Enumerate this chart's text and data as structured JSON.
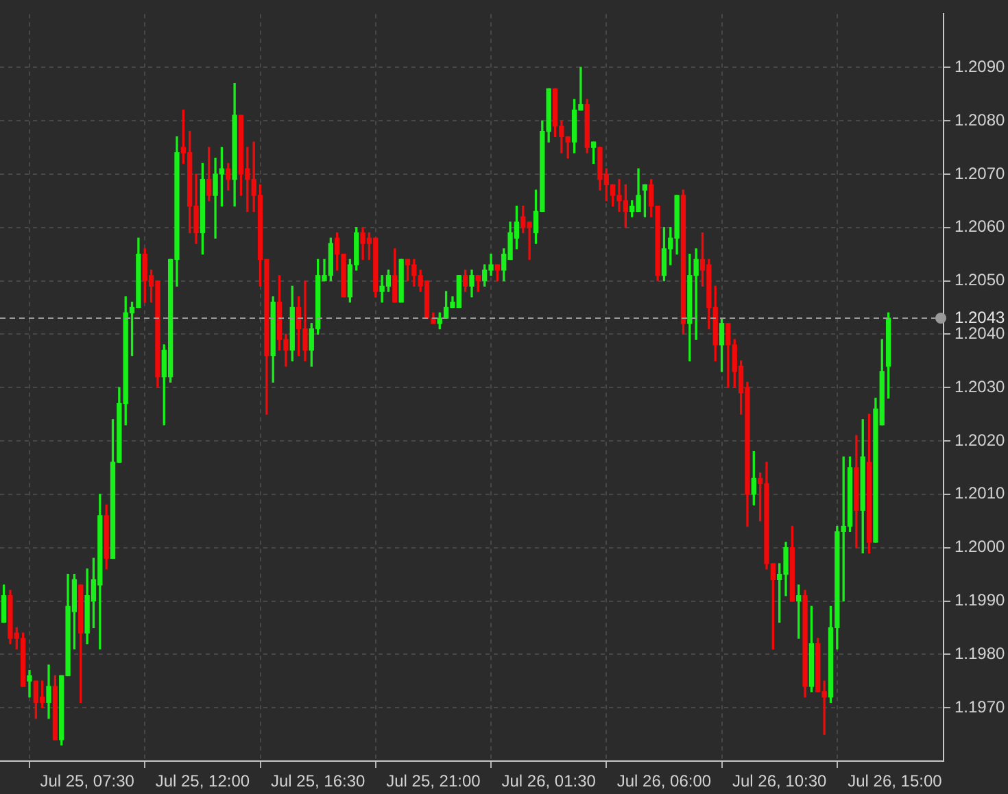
{
  "chart_data": {
    "type": "candlestick",
    "x": [
      "--07-25T04:15",
      "--07-25T04:30",
      "--07-25T04:45",
      "--07-25T05:00",
      "--07-25T05:15",
      "--07-25T05:30",
      "--07-25T05:45",
      "--07-25T06:00",
      "--07-25T06:15",
      "--07-25T06:30",
      "--07-25T06:45",
      "--07-25T07:00",
      "--07-25T07:15",
      "--07-25T07:30",
      "--07-25T07:45",
      "--07-25T08:00",
      "--07-25T08:15",
      "--07-25T08:30",
      "--07-25T08:45",
      "--07-25T09:00",
      "--07-25T09:15",
      "--07-25T09:30",
      "--07-25T09:45",
      "--07-25T10:00",
      "--07-25T10:15",
      "--07-25T10:30",
      "--07-25T10:45",
      "--07-25T11:00",
      "--07-25T11:15",
      "--07-25T11:30",
      "--07-25T11:45",
      "--07-25T12:00",
      "--07-25T12:15",
      "--07-25T12:30",
      "--07-25T12:45",
      "--07-25T13:00",
      "--07-25T13:15",
      "--07-25T13:30",
      "--07-25T13:45",
      "--07-25T14:00",
      "--07-25T14:15",
      "--07-25T14:30",
      "--07-25T14:45",
      "--07-25T15:00",
      "--07-25T15:15",
      "--07-25T15:30",
      "--07-25T15:45",
      "--07-25T16:00",
      "--07-25T16:15",
      "--07-25T16:30",
      "--07-25T16:45",
      "--07-25T17:00",
      "--07-25T17:15",
      "--07-25T17:30",
      "--07-25T17:45",
      "--07-25T18:00",
      "--07-25T18:15",
      "--07-25T18:30",
      "--07-25T18:45",
      "--07-25T19:00",
      "--07-25T19:15",
      "--07-25T19:30",
      "--07-25T19:45",
      "--07-25T20:00",
      "--07-25T20:15",
      "--07-25T20:30",
      "--07-25T20:45",
      "--07-25T21:00",
      "--07-25T21:15",
      "--07-25T21:30",
      "--07-25T21:45",
      "--07-25T22:00",
      "--07-25T22:15",
      "--07-25T22:30",
      "--07-25T22:45",
      "--07-25T23:00",
      "--07-25T23:15",
      "--07-25T23:30",
      "--07-25T23:45",
      "--07-26T00:00",
      "--07-26T00:15",
      "--07-26T00:30",
      "--07-26T00:45",
      "--07-26T01:00",
      "--07-26T01:15",
      "--07-26T01:30",
      "--07-26T01:45",
      "--07-26T02:00",
      "--07-26T02:15",
      "--07-26T02:30",
      "--07-26T02:45",
      "--07-26T03:00",
      "--07-26T03:15",
      "--07-26T03:30",
      "--07-26T03:45",
      "--07-26T04:00",
      "--07-26T04:15",
      "--07-26T04:30",
      "--07-26T04:45",
      "--07-26T05:00",
      "--07-26T05:15",
      "--07-26T05:30",
      "--07-26T05:45",
      "--07-26T06:00",
      "--07-26T06:15",
      "--07-26T06:30",
      "--07-26T06:45",
      "--07-26T07:00",
      "--07-26T07:15",
      "--07-26T07:30",
      "--07-26T07:45",
      "--07-26T08:00",
      "--07-26T08:15",
      "--07-26T08:30",
      "--07-26T08:45",
      "--07-26T09:00",
      "--07-26T09:15",
      "--07-26T09:30",
      "--07-26T09:45",
      "--07-26T10:00",
      "--07-26T10:15",
      "--07-26T10:30",
      "--07-26T10:45",
      "--07-26T11:00",
      "--07-26T11:15",
      "--07-26T11:30",
      "--07-26T11:45",
      "--07-26T12:00",
      "--07-26T12:15",
      "--07-26T12:30",
      "--07-26T12:45",
      "--07-26T13:00",
      "--07-26T13:15",
      "--07-26T13:30",
      "--07-26T13:45",
      "--07-26T14:00",
      "--07-26T14:15",
      "--07-26T14:30",
      "--07-26T14:45"
    ],
    "ohlc": [
      [
        1.1986,
        1.1993,
        1.1986,
        1.1991
      ],
      [
        1.1991,
        1.1992,
        1.1982,
        1.1983
      ],
      [
        1.1984,
        1.1985,
        1.1981,
        1.1983
      ],
      [
        1.1983,
        1.1984,
        1.1974,
        1.1974
      ],
      [
        1.1975,
        1.1977,
        1.1972,
        1.1976
      ],
      [
        1.1975,
        1.1975,
        1.1968,
        1.1971
      ],
      [
        1.1972,
        1.1975,
        1.197,
        1.1971
      ],
      [
        1.1971,
        1.1978,
        1.1968,
        1.1974
      ],
      [
        1.1974,
        1.1976,
        1.1964,
        1.1964
      ],
      [
        1.1964,
        1.1976,
        1.1963,
        1.1976
      ],
      [
        1.1976,
        1.1995,
        1.1976,
        1.1989
      ],
      [
        1.1988,
        1.1995,
        1.1981,
        1.1994
      ],
      [
        1.1993,
        1.1993,
        1.1971,
        1.1984
      ],
      [
        1.1984,
        1.1996,
        1.1982,
        1.1991
      ],
      [
        1.199,
        1.1998,
        1.1985,
        1.1994
      ],
      [
        1.1993,
        1.201,
        1.1981,
        1.2006
      ],
      [
        1.2006,
        1.2008,
        1.1996,
        1.1998
      ],
      [
        1.1998,
        1.2024,
        1.1998,
        1.2016
      ],
      [
        1.2016,
        1.203,
        1.2016,
        1.2027
      ],
      [
        1.2027,
        1.2047,
        1.2023,
        1.2044
      ],
      [
        1.2044,
        1.2046,
        1.2036,
        1.2045
      ],
      [
        1.2045,
        1.2058,
        1.2045,
        1.2055
      ],
      [
        1.2055,
        1.2056,
        1.2046,
        1.205
      ],
      [
        1.2051,
        1.2052,
        1.2046,
        1.2049
      ],
      [
        1.205,
        1.205,
        1.203,
        1.2032
      ],
      [
        1.2032,
        1.2038,
        1.2023,
        1.2037
      ],
      [
        1.2032,
        1.2054,
        1.2031,
        1.2054
      ],
      [
        1.2054,
        1.2077,
        1.2049,
        1.2074
      ],
      [
        1.2075,
        1.2082,
        1.2072,
        1.2074
      ],
      [
        1.2074,
        1.2078,
        1.2059,
        1.2064
      ],
      [
        1.2064,
        1.207,
        1.2057,
        1.2059
      ],
      [
        1.2059,
        1.2072,
        1.2055,
        1.2069
      ],
      [
        1.2069,
        1.2075,
        1.2065,
        1.2066
      ],
      [
        1.2066,
        1.2073,
        1.2058,
        1.207
      ],
      [
        1.207,
        1.2075,
        1.2064,
        1.2071
      ],
      [
        1.2071,
        1.2072,
        1.2067,
        1.2069
      ],
      [
        1.2069,
        1.2087,
        1.2064,
        1.2081
      ],
      [
        1.2081,
        1.2081,
        1.2066,
        1.207
      ],
      [
        1.2071,
        1.2075,
        1.2063,
        1.2069
      ],
      [
        1.2069,
        1.2076,
        1.2063,
        1.2066
      ],
      [
        1.2066,
        1.2068,
        1.2049,
        1.2054
      ],
      [
        1.2054,
        1.2054,
        1.2025,
        1.2036
      ],
      [
        1.2036,
        1.2047,
        1.2031,
        1.2046
      ],
      [
        1.2046,
        1.2051,
        1.2037,
        1.2039
      ],
      [
        1.2039,
        1.204,
        1.2034,
        1.2037
      ],
      [
        1.2037,
        1.2049,
        1.2035,
        1.2045
      ],
      [
        1.2045,
        1.2047,
        1.2036,
        1.2041
      ],
      [
        1.2041,
        1.205,
        1.2035,
        1.2037
      ],
      [
        1.2037,
        1.2042,
        1.2034,
        1.2041
      ],
      [
        1.2041,
        1.2054,
        1.204,
        1.2051
      ],
      [
        1.205,
        1.2054,
        1.205,
        1.2051
      ],
      [
        1.2051,
        1.2058,
        1.205,
        1.2057
      ],
      [
        1.2058,
        1.2059,
        1.2052,
        1.2055
      ],
      [
        1.2055,
        1.2055,
        1.2047,
        1.2047
      ],
      [
        1.2047,
        1.2054,
        1.2046,
        1.2053
      ],
      [
        1.2053,
        1.206,
        1.2052,
        1.2059
      ],
      [
        1.2059,
        1.206,
        1.2054,
        1.2057
      ],
      [
        1.2058,
        1.2059,
        1.2054,
        1.2057
      ],
      [
        1.2058,
        1.2058,
        1.2047,
        1.2048
      ],
      [
        1.2048,
        1.2051,
        1.2046,
        1.2049
      ],
      [
        1.2049,
        1.2052,
        1.2048,
        1.2051
      ],
      [
        1.2051,
        1.2056,
        1.2046,
        1.2046
      ],
      [
        1.2046,
        1.2054,
        1.2046,
        1.2054
      ],
      [
        1.2054,
        1.2054,
        1.205,
        1.2053
      ],
      [
        1.2053,
        1.2054,
        1.2049,
        1.2051
      ],
      [
        1.2051,
        1.2052,
        1.2048,
        1.2049
      ],
      [
        1.205,
        1.205,
        1.2043,
        1.2043
      ],
      [
        1.2043,
        1.2044,
        1.2042,
        1.2042
      ],
      [
        1.2042,
        1.2044,
        1.2041,
        1.2043
      ],
      [
        1.2043,
        1.2048,
        1.2043,
        1.2045
      ],
      [
        1.2045,
        1.2047,
        1.2045,
        1.2046
      ],
      [
        1.2045,
        1.2051,
        1.2045,
        1.2051
      ],
      [
        1.2051,
        1.2052,
        1.2048,
        1.2049
      ],
      [
        1.2049,
        1.2052,
        1.2047,
        1.2051
      ],
      [
        1.2051,
        1.2051,
        1.2048,
        1.205
      ],
      [
        1.205,
        1.2053,
        1.2049,
        1.2052
      ],
      [
        1.2052,
        1.2055,
        1.2051,
        1.2053
      ],
      [
        1.2053,
        1.2053,
        1.205,
        1.2052
      ],
      [
        1.2052,
        1.2056,
        1.205,
        1.2055
      ],
      [
        1.2054,
        1.2061,
        1.2054,
        1.2059
      ],
      [
        1.2058,
        1.2064,
        1.2056,
        1.2061
      ],
      [
        1.2062,
        1.2064,
        1.2059,
        1.206
      ],
      [
        1.2061,
        1.2061,
        1.2054,
        1.206
      ],
      [
        1.2059,
        1.2067,
        1.2057,
        1.2063
      ],
      [
        1.2063,
        1.208,
        1.2063,
        1.2078
      ],
      [
        1.2078,
        1.2086,
        1.2076,
        1.2086
      ],
      [
        1.2086,
        1.2086,
        1.2077,
        1.2079
      ],
      [
        1.2079,
        1.208,
        1.2074,
        1.2077
      ],
      [
        1.2077,
        1.2077,
        1.2073,
        1.2076
      ],
      [
        1.2076,
        1.2084,
        1.2074,
        1.2082
      ],
      [
        1.2082,
        1.209,
        1.2082,
        1.2083
      ],
      [
        1.2083,
        1.2084,
        1.2074,
        1.2075
      ],
      [
        1.2075,
        1.2076,
        1.2072,
        1.2076
      ],
      [
        1.2075,
        1.2075,
        1.2067,
        1.2069
      ],
      [
        1.207,
        1.2071,
        1.2065,
        1.2068
      ],
      [
        1.2068,
        1.2068,
        1.2064,
        1.2066
      ],
      [
        1.2066,
        1.2069,
        1.2063,
        1.2065
      ],
      [
        1.2065,
        1.2068,
        1.206,
        1.2063
      ],
      [
        1.2063,
        1.2065,
        1.2062,
        1.2064
      ],
      [
        1.2063,
        1.2071,
        1.2063,
        1.2066
      ],
      [
        1.2067,
        1.2068,
        1.2062,
        1.2068
      ],
      [
        1.2068,
        1.2069,
        1.2062,
        1.2064
      ],
      [
        1.2064,
        1.2064,
        1.205,
        1.2051
      ],
      [
        1.2051,
        1.206,
        1.205,
        1.2056
      ],
      [
        1.2056,
        1.206,
        1.2053,
        1.2058
      ],
      [
        1.2058,
        1.2066,
        1.2055,
        1.2066
      ],
      [
        1.2066,
        1.2067,
        1.204,
        1.2042
      ],
      [
        1.2042,
        1.2055,
        1.2035,
        1.2051
      ],
      [
        1.2051,
        1.2056,
        1.2039,
        1.2054
      ],
      [
        1.2054,
        1.2059,
        1.2049,
        1.2052
      ],
      [
        1.2053,
        1.2054,
        1.2041,
        1.2045
      ],
      [
        1.2045,
        1.2049,
        1.2035,
        1.2038
      ],
      [
        1.2038,
        1.2043,
        1.2033,
        1.2042
      ],
      [
        1.2042,
        1.2042,
        1.203,
        1.2038
      ],
      [
        1.2038,
        1.2039,
        1.203,
        1.2033
      ],
      [
        1.2034,
        1.2035,
        1.2025,
        1.2029
      ],
      [
        1.203,
        1.2031,
        1.2004,
        1.201
      ],
      [
        1.201,
        1.2018,
        1.2008,
        1.2013
      ],
      [
        1.2013,
        1.2014,
        1.2005,
        1.2012
      ],
      [
        1.2012,
        1.2016,
        1.1996,
        1.1997
      ],
      [
        1.1997,
        1.1997,
        1.1981,
        1.1994
      ],
      [
        1.1994,
        1.1997,
        1.1986,
        1.1995
      ],
      [
        1.1995,
        1.2001,
        1.1991,
        1.2
      ],
      [
        1.2,
        1.2004,
        1.199,
        1.199
      ],
      [
        1.199,
        1.1993,
        1.1983,
        1.1991
      ],
      [
        1.1991,
        1.1992,
        1.1972,
        1.1974
      ],
      [
        1.1974,
        1.1989,
        1.1973,
        1.1982
      ],
      [
        1.1982,
        1.1983,
        1.1973,
        1.1973
      ],
      [
        1.1973,
        1.1975,
        1.1965,
        1.1972
      ],
      [
        1.1972,
        1.1989,
        1.1971,
        1.1985
      ],
      [
        1.1985,
        1.2004,
        1.1981,
        1.2003
      ],
      [
        1.2003,
        1.2017,
        1.199,
        1.2004
      ],
      [
        1.2004,
        1.2017,
        1.2003,
        1.2015
      ],
      [
        1.2015,
        1.2021,
        1.2,
        1.2007
      ],
      [
        1.2007,
        1.2024,
        1.1999,
        1.2017
      ],
      [
        1.2016,
        1.2025,
        1.1999,
        1.2001
      ],
      [
        1.2001,
        1.2028,
        1.2001,
        1.2026
      ],
      [
        1.2023,
        1.2039,
        1.2023,
        1.2033
      ],
      [
        1.2034,
        1.2044,
        1.2028,
        1.2043
      ]
    ],
    "colors": [
      "#19f019",
      "#f00a0a",
      "#f00a0a",
      "#f00a0a",
      "#19f019",
      "#f00a0a",
      "#f00a0a",
      "#19f019",
      "#f00a0a",
      "#19f019",
      "#19f019",
      "#19f019",
      "#f00a0a",
      "#19f019",
      "#19f019",
      "#19f019",
      "#f00a0a",
      "#19f019",
      "#19f019",
      "#19f019",
      "#19f019",
      "#19f019",
      "#f00a0a",
      "#f00a0a",
      "#f00a0a",
      "#19f019",
      "#19f019",
      "#19f019",
      "#f00a0a",
      "#f00a0a",
      "#f00a0a",
      "#19f019",
      "#f00a0a",
      "#19f019",
      "#19f019",
      "#f00a0a",
      "#19f019",
      "#f00a0a",
      "#f00a0a",
      "#f00a0a",
      "#f00a0a",
      "#f00a0a",
      "#19f019",
      "#f00a0a",
      "#f00a0a",
      "#19f019",
      "#f00a0a",
      "#f00a0a",
      "#19f019",
      "#19f019",
      "#19f019",
      "#19f019",
      "#f00a0a",
      "#f00a0a",
      "#19f019",
      "#19f019",
      "#f00a0a",
      "#f00a0a",
      "#f00a0a",
      "#19f019",
      "#19f019",
      "#f00a0a",
      "#19f019",
      "#f00a0a",
      "#f00a0a",
      "#f00a0a",
      "#f00a0a",
      "#f00a0a",
      "#19f019",
      "#19f019",
      "#19f019",
      "#19f019",
      "#f00a0a",
      "#19f019",
      "#f00a0a",
      "#19f019",
      "#19f019",
      "#f00a0a",
      "#19f019",
      "#19f019",
      "#19f019",
      "#f00a0a",
      "#f00a0a",
      "#19f019",
      "#19f019",
      "#19f019",
      "#f00a0a",
      "#f00a0a",
      "#f00a0a",
      "#19f019",
      "#19f019",
      "#f00a0a",
      "#19f019",
      "#f00a0a",
      "#f00a0a",
      "#f00a0a",
      "#f00a0a",
      "#f00a0a",
      "#19f019",
      "#19f019",
      "#19f019",
      "#f00a0a",
      "#f00a0a",
      "#19f019",
      "#19f019",
      "#19f019",
      "#f00a0a",
      "#19f019",
      "#19f019",
      "#f00a0a",
      "#f00a0a",
      "#f00a0a",
      "#19f019",
      "#f00a0a",
      "#f00a0a",
      "#f00a0a",
      "#f00a0a",
      "#19f019",
      "#f00a0a",
      "#f00a0a",
      "#f00a0a",
      "#19f019",
      "#19f019",
      "#f00a0a",
      "#19f019",
      "#f00a0a",
      "#19f019",
      "#f00a0a",
      "#f00a0a",
      "#19f019",
      "#19f019",
      "#19f019",
      "#19f019",
      "#f00a0a",
      "#19f019",
      "#f00a0a",
      "#19f019",
      "#19f019",
      "#19f019"
    ],
    "xlim": [
      "--07-25T04:06",
      "--07-26T16:54"
    ],
    "xticks": [
      {
        "value": "--07-25T07:30",
        "label": "Jul 25, 07:30"
      },
      {
        "value": "--07-25T12:00",
        "label": "Jul 25, 12:00"
      },
      {
        "value": "--07-25T16:30",
        "label": "Jul 25, 16:30"
      },
      {
        "value": "--07-25T21:00",
        "label": "Jul 25, 21:00"
      },
      {
        "value": "--07-26T01:30",
        "label": "Jul 26, 01:30"
      },
      {
        "value": "--07-26T06:00",
        "label": "Jul 26, 06:00"
      },
      {
        "value": "--07-26T10:30",
        "label": "Jul 26, 10:30"
      },
      {
        "value": "--07-26T15:00",
        "label": "Jul 26, 15:00"
      }
    ],
    "ylim": [
      1.196,
      1.21
    ],
    "yticks": [
      {
        "value": 1.197,
        "label": "1.1970"
      },
      {
        "value": 1.198,
        "label": "1.1980"
      },
      {
        "value": 1.199,
        "label": "1.1990"
      },
      {
        "value": 1.2,
        "label": "1.2000"
      },
      {
        "value": 1.201,
        "label": "1.2010"
      },
      {
        "value": 1.202,
        "label": "1.2020"
      },
      {
        "value": 1.203,
        "label": "1.2030"
      },
      {
        "value": 1.204,
        "label": "1.2040"
      },
      {
        "value": 1.205,
        "label": "1.2050"
      },
      {
        "value": 1.206,
        "label": "1.2060"
      },
      {
        "value": 1.207,
        "label": "1.2070"
      },
      {
        "value": 1.208,
        "label": "1.2080"
      },
      {
        "value": 1.209,
        "label": "1.2090"
      }
    ],
    "ref_lines": [
      {
        "axis": "y",
        "value": 1.2043,
        "label": "1.2043",
        "color": "#9a9a9a",
        "line_style": "dashed"
      }
    ],
    "grid": true
  }
}
